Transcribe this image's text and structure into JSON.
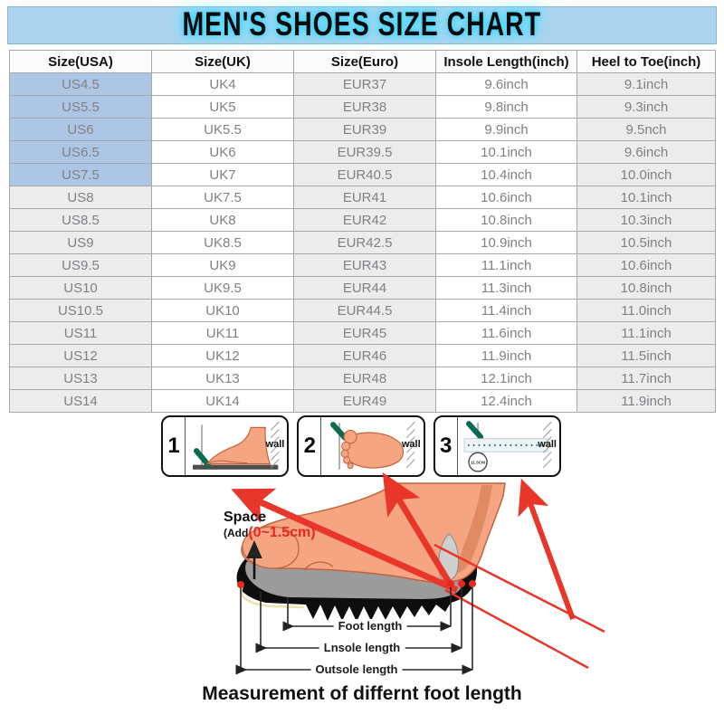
{
  "title": "MEN'S SHOES SIZE CHART",
  "colors": {
    "title_bg": "#aed3ee",
    "title_glow": "#3fd4f9",
    "highlight_blue": "#aec6e5",
    "cell_gray": "#ececec",
    "accent_red": "#e8281e",
    "pen_green": "#0b6b50"
  },
  "chart_data": {
    "type": "table",
    "title": "MEN'S SHOES SIZE CHART",
    "columns": [
      "Size(USA)",
      "Size(UK)",
      "Size(Euro)",
      "Insole Length(inch)",
      "Heel to Toe(inch)"
    ],
    "rows": [
      [
        "US4.5",
        "UK4",
        "EUR37",
        "9.6inch",
        "9.1inch"
      ],
      [
        "US5.5",
        "UK5",
        "EUR38",
        "9.8inch",
        "9.3inch"
      ],
      [
        "US6",
        "UK5.5",
        "EUR39",
        "9.9inch",
        "9.5nch"
      ],
      [
        "US6.5",
        "UK6",
        "EUR39.5",
        "10.1inch",
        "9.6inch"
      ],
      [
        "US7.5",
        "UK7",
        "EUR40.5",
        "10.4inch",
        "10.0inch"
      ],
      [
        "US8",
        "UK7.5",
        "EUR41",
        "10.6inch",
        "10.1inch"
      ],
      [
        "US8.5",
        "UK8",
        "EUR42",
        "10.8inch",
        "10.3inch"
      ],
      [
        "US9",
        "UK8.5",
        "EUR42.5",
        "10.9inch",
        "10.5inch"
      ],
      [
        "US9.5",
        "UK9",
        "EUR43",
        "11.1inch",
        "10.6inch"
      ],
      [
        "US10",
        "UK9.5",
        "EUR44",
        "11.3inch",
        "10.8inch"
      ],
      [
        "US10.5",
        "UK10",
        "EUR44.5",
        "11.4inch",
        "11.0inch"
      ],
      [
        "US11",
        "UK11",
        "EUR45",
        "11.6inch",
        "11.1inch"
      ],
      [
        "US12",
        "UK12",
        "EUR46",
        "11.9inch",
        "11.5inch"
      ],
      [
        "US13",
        "UK13",
        "EUR48",
        "12.1inch",
        "11.7inch"
      ],
      [
        "US14",
        "UK14",
        "EUR49",
        "12.4inch",
        "11.9inch"
      ]
    ],
    "highlighted_row_count": 5,
    "layout": "first column shaded blue for first 5 rows, alternating white/gray columns"
  },
  "instructions": {
    "steps": [
      {
        "number": "1",
        "wall_label": "wall"
      },
      {
        "number": "2",
        "wall_label": "wall"
      },
      {
        "number": "3",
        "wall_label": "wall",
        "circle_label": "11.5CM"
      }
    ]
  },
  "diagram": {
    "space_label": "Space",
    "space_sub_black": "(Add",
    "space_sub_red": "(0~1.5cm)",
    "measures": [
      "Foot length",
      "Lnsole length",
      "Outsole length"
    ],
    "caption": "Measurement of differnt foot length"
  }
}
